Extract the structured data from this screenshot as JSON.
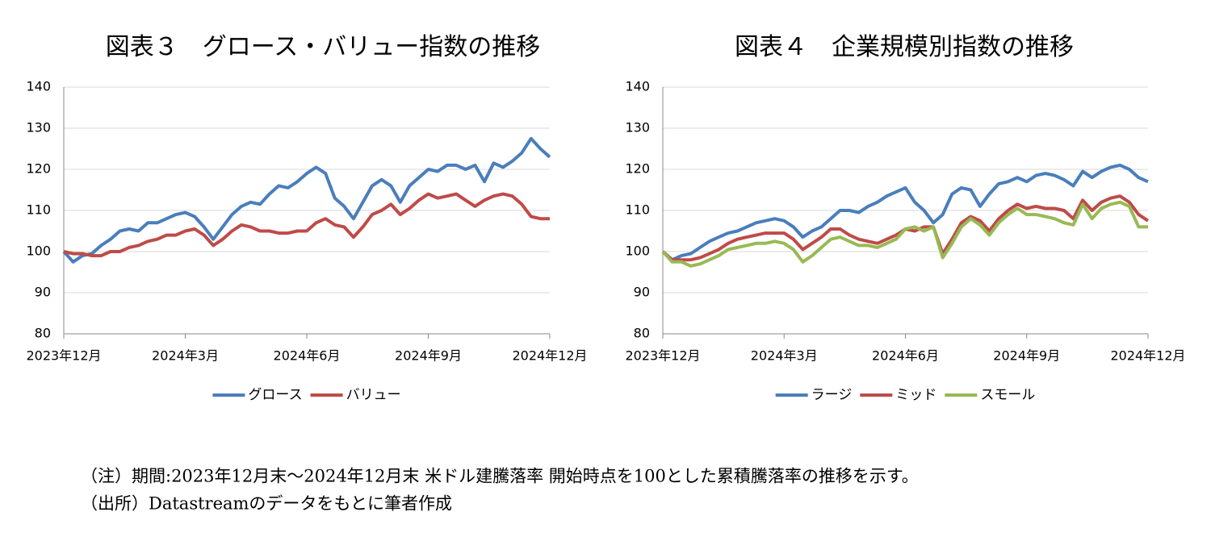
{
  "chart_data": [
    {
      "type": "line",
      "title": "図表３　グロース・バリュー指数の推移",
      "categories": [
        "2023年12月",
        null,
        null,
        null,
        null,
        null,
        null,
        null,
        null,
        null,
        null,
        null,
        null,
        "2024年3月",
        null,
        null,
        null,
        null,
        null,
        null,
        null,
        null,
        null,
        null,
        null,
        null,
        "2024年6月",
        null,
        null,
        null,
        null,
        null,
        null,
        null,
        null,
        null,
        null,
        null,
        null,
        "2024年9月",
        null,
        null,
        null,
        null,
        null,
        null,
        null,
        null,
        null,
        null,
        null,
        null,
        "2024年12月"
      ],
      "ylim": [
        80,
        140
      ],
      "yticks": [
        80,
        90,
        100,
        110,
        120,
        130,
        140
      ],
      "grid": true,
      "series": [
        {
          "name": "グロース",
          "color": "#4a7ebb",
          "values": [
            100,
            97.5,
            99,
            99.5,
            101.5,
            103,
            105,
            105.5,
            105,
            107,
            107,
            108,
            109,
            109.5,
            108.5,
            106,
            103,
            106,
            109,
            111,
            112,
            111.5,
            114,
            116,
            115.5,
            117,
            119,
            120.5,
            119,
            113,
            111,
            108,
            112,
            116,
            117.5,
            116,
            112,
            116,
            118,
            120,
            119.5,
            121,
            121,
            120,
            121,
            117,
            121.5,
            120.5,
            122,
            124,
            127.5,
            125,
            123
          ]
        },
        {
          "name": "バリュー",
          "color": "#be4b48",
          "values": [
            100,
            99.5,
            99.5,
            99,
            99,
            100,
            100,
            101,
            101.5,
            102.5,
            103,
            104,
            104,
            105,
            105.5,
            104,
            101.5,
            103,
            105,
            106.5,
            106,
            105,
            105,
            104.5,
            104.5,
            105,
            105,
            107,
            108,
            106.5,
            106,
            103.5,
            106,
            109,
            110,
            111.5,
            109,
            110.5,
            112.5,
            114,
            113,
            113.5,
            114,
            112.5,
            111,
            112.5,
            113.5,
            114,
            113.5,
            111.5,
            108.5,
            108,
            108
          ]
        }
      ]
    },
    {
      "type": "line",
      "title": "図表４　企業規模別指数の推移",
      "categories": [
        "2023年12月",
        null,
        null,
        null,
        null,
        null,
        null,
        null,
        null,
        null,
        null,
        null,
        null,
        "2024年3月",
        null,
        null,
        null,
        null,
        null,
        null,
        null,
        null,
        null,
        null,
        null,
        null,
        "2024年6月",
        null,
        null,
        null,
        null,
        null,
        null,
        null,
        null,
        null,
        null,
        null,
        null,
        "2024年9月",
        null,
        null,
        null,
        null,
        null,
        null,
        null,
        null,
        null,
        null,
        null,
        null,
        "2024年12月"
      ],
      "ylim": [
        80,
        140
      ],
      "yticks": [
        80,
        90,
        100,
        110,
        120,
        130,
        140
      ],
      "grid": true,
      "series": [
        {
          "name": "ラージ",
          "color": "#4a7ebb",
          "values": [
            100,
            98,
            99,
            99.5,
            101,
            102.5,
            103.5,
            104.5,
            105,
            106,
            107,
            107.5,
            108,
            107.5,
            106,
            103.5,
            105,
            106,
            108,
            110,
            110,
            109.5,
            111,
            112,
            113.5,
            114.5,
            115.5,
            112,
            110,
            107,
            109,
            114,
            115.5,
            115,
            111,
            114,
            116.5,
            117,
            118,
            117,
            118.5,
            119,
            118.5,
            117.5,
            116,
            119.5,
            118,
            119.5,
            120.5,
            121,
            120,
            118,
            117
          ]
        },
        {
          "name": "ミッド",
          "color": "#be4b48",
          "values": [
            100,
            98,
            98,
            98,
            98.5,
            99.5,
            100.5,
            102,
            103,
            103.5,
            104,
            104.5,
            104.5,
            104.5,
            103,
            100.5,
            102,
            103.5,
            105.5,
            105.5,
            104,
            103,
            102.5,
            102,
            103,
            104,
            105.5,
            105,
            106,
            106,
            99.5,
            103,
            107,
            108.5,
            107.5,
            105,
            108,
            110,
            111.5,
            110.5,
            111,
            110.5,
            110.5,
            110,
            108,
            112.5,
            110,
            112,
            113,
            113.5,
            112,
            109,
            107.5
          ]
        },
        {
          "name": "スモール",
          "color": "#98b954",
          "values": [
            100,
            97.5,
            97.5,
            96.5,
            97,
            98,
            99,
            100.5,
            101,
            101.5,
            102,
            102,
            102.5,
            102,
            100.5,
            97.5,
            99,
            101,
            103,
            103.5,
            102.5,
            101.5,
            101.5,
            101,
            102,
            103,
            105.5,
            106,
            105,
            106,
            98.5,
            102,
            106,
            108,
            106.5,
            104,
            107,
            109,
            110.5,
            109,
            109,
            108.5,
            108,
            107,
            106.5,
            111.5,
            108,
            110.5,
            111.5,
            112,
            111,
            106,
            106
          ]
        }
      ]
    }
  ],
  "notes": [
    "（注）期間:2023年12月末～2024年12月末 米ドル建騰落率 開始時点を100とした累積騰落率の推移を示す。",
    "（出所）Datastreamのデータをもとに筆者作成"
  ]
}
